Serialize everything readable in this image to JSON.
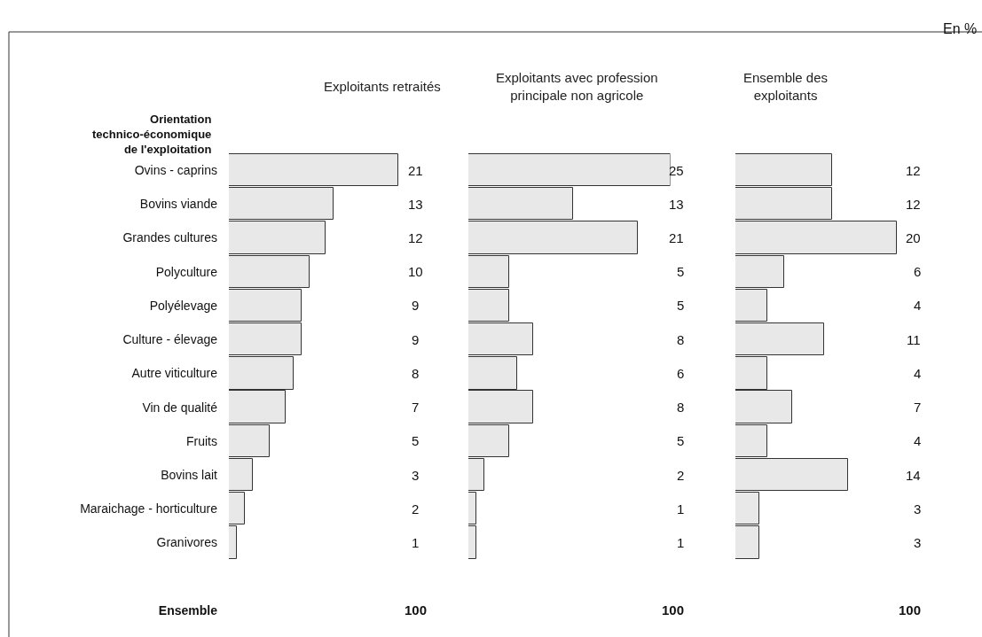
{
  "chart_data": [
    {
      "type": "bar",
      "orientation": "horizontal",
      "title": "Exploitants retraités",
      "ylabel": "Orientation\ntechnico-économique\nde l'exploitation",
      "annotations": [
        "En %"
      ],
      "tick_labels": "y",
      "color": "#e8e8e8",
      "categories": [
        "Ovins - caprins",
        "Bovins viande",
        "Grandes cultures",
        "Polyculture",
        "Polyélevage",
        "Culture - élevage",
        "Autre viticulture",
        "Vin de qualité",
        "Fruits",
        "Bovins lait",
        "Maraichage - horticulture",
        "Granivores",
        null,
        "Ensemble"
      ],
      "values": [
        21,
        13,
        12,
        10,
        9,
        9,
        8,
        7,
        5,
        3,
        2,
        1,
        null,
        null
      ],
      "value_labels": [
        "21",
        "13",
        "12",
        "10",
        "9",
        "9",
        "8",
        "7",
        "5",
        "3",
        "2",
        "1",
        null,
        "100"
      ]
    },
    {
      "type": "bar",
      "orientation": "horizontal",
      "title": "Exploitants avec profession\nprincipale non agricole",
      "tick_labels": false,
      "color": "#e8e8e8",
      "values": [
        25,
        13,
        21,
        5,
        5,
        8,
        6,
        8,
        5,
        2,
        1,
        1,
        null,
        null
      ],
      "value_labels": [
        "25",
        "13",
        "21",
        "5",
        "5",
        "8",
        "6",
        "8",
        "5",
        "2",
        "1",
        "1",
        null,
        "100"
      ]
    },
    {
      "type": "bar",
      "orientation": "horizontal",
      "title": "Ensemble des\nexploitants",
      "tick_labels": false,
      "color": "#e8e8e8",
      "values": [
        12,
        12,
        20,
        6,
        4,
        11,
        4,
        7,
        4,
        14,
        3,
        3,
        null,
        null
      ],
      "value_labels": [
        "12",
        "12",
        "20",
        "6",
        "4",
        "11",
        "4",
        "7",
        "4",
        "14",
        "3",
        "3",
        null,
        "100"
      ]
    }
  ]
}
